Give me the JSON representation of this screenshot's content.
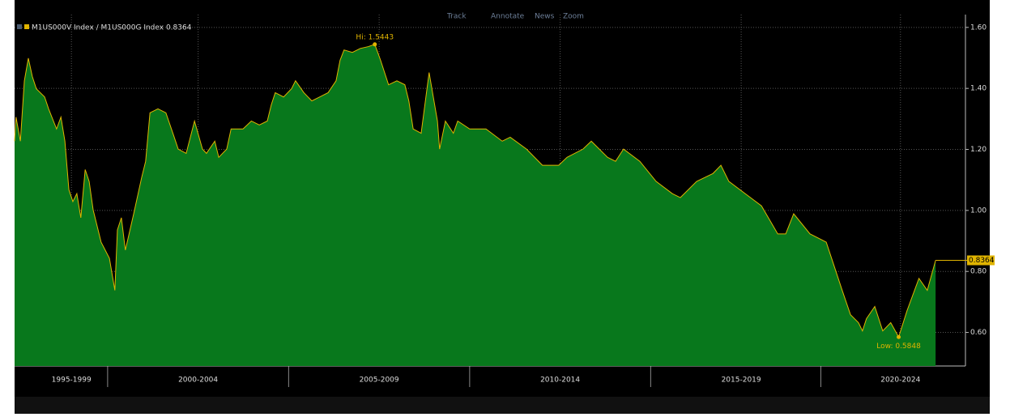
{
  "toolbar": [
    "Track",
    "Annotate",
    "News",
    "Zoom"
  ],
  "chart_data": {
    "type": "area",
    "x": [
      1997.43,
      1997.47,
      1997.59,
      1997.7,
      1997.81,
      1997.92,
      1998.03,
      1998.26,
      1998.37,
      1998.59,
      1998.71,
      1998.82,
      1998.93,
      1999.04,
      1999.15,
      1999.26,
      1999.38,
      1999.49,
      1999.6,
      1999.82,
      2000.05,
      2000.2,
      2000.27,
      2000.38,
      2000.49,
      2000.72,
      2000.94,
      2001.05,
      2001.17,
      2001.39,
      2001.61,
      2001.84,
      2001.95,
      2002.17,
      2002.4,
      2002.62,
      2002.73,
      2002.96,
      2003.07,
      2003.29,
      2003.41,
      2003.74,
      2003.97,
      2004.19,
      2004.41,
      2004.52,
      2004.63,
      2004.86,
      2005.08,
      2005.19,
      2005.42,
      2005.64,
      2005.86,
      2006.09,
      2006.31,
      2006.42,
      2006.53,
      2006.76,
      2006.98,
      2007.2,
      2007.38,
      2007.54,
      2007.76,
      2007.99,
      2008.21,
      2008.32,
      2008.44,
      2008.66,
      2008.88,
      2009.11,
      2009.17,
      2009.33,
      2009.55,
      2009.67,
      2010.0,
      2010.45,
      2010.9,
      2011.12,
      2011.57,
      2012.01,
      2012.46,
      2012.69,
      2013.13,
      2013.36,
      2013.81,
      2014.03,
      2014.25,
      2014.7,
      2015.15,
      2015.6,
      2015.82,
      2016.27,
      2016.72,
      2016.94,
      2017.16,
      2017.61,
      2018.06,
      2018.51,
      2018.73,
      2018.95,
      2019.4,
      2019.85,
      2020.07,
      2020.29,
      2020.52,
      2020.74,
      2020.85,
      2020.96,
      2021.19,
      2021.41,
      2021.63,
      2021.85,
      2022.08,
      2022.41,
      2022.64,
      2022.87
    ],
    "series": [
      {
        "name": "M1US000V Index / M1US000G Index 0.8364",
        "color": "#e0b400",
        "fill": "#08781c",
        "values": [
          1.227,
          1.306,
          1.227,
          1.425,
          1.499,
          1.439,
          1.399,
          1.372,
          1.333,
          1.267,
          1.306,
          1.227,
          1.068,
          1.029,
          1.055,
          0.976,
          1.134,
          1.095,
          1.002,
          0.896,
          0.843,
          0.738,
          0.936,
          0.976,
          0.87,
          0.989,
          1.108,
          1.161,
          1.32,
          1.333,
          1.32,
          1.24,
          1.201,
          1.187,
          1.293,
          1.201,
          1.187,
          1.227,
          1.174,
          1.201,
          1.267,
          1.267,
          1.293,
          1.28,
          1.293,
          1.346,
          1.386,
          1.372,
          1.399,
          1.425,
          1.386,
          1.359,
          1.372,
          1.386,
          1.425,
          1.492,
          1.526,
          1.518,
          1.531,
          1.537,
          1.5443,
          1.492,
          1.412,
          1.425,
          1.412,
          1.359,
          1.267,
          1.253,
          1.452,
          1.293,
          1.201,
          1.293,
          1.253,
          1.293,
          1.267,
          1.267,
          1.227,
          1.24,
          1.201,
          1.148,
          1.148,
          1.174,
          1.201,
          1.227,
          1.174,
          1.161,
          1.201,
          1.161,
          1.095,
          1.055,
          1.042,
          1.095,
          1.121,
          1.148,
          1.095,
          1.055,
          1.015,
          0.923,
          0.923,
          0.989,
          0.923,
          0.896,
          0.817,
          0.738,
          0.658,
          0.632,
          0.605,
          0.645,
          0.685,
          0.605,
          0.632,
          0.5848,
          0.671,
          0.777,
          0.738,
          0.8364
        ]
      }
    ],
    "annotations": [
      {
        "text": "Hi: 1.5443",
        "x": 2007.38,
        "y": 1.5443
      },
      {
        "text": "Low: 0.5848",
        "x": 2021.85,
        "y": 0.5848
      }
    ],
    "xlim": [
      1997.43,
      2023.65
    ],
    "xticks": [
      {
        "value": 1999,
        "label": "1995-1999"
      },
      {
        "value": 2002.5,
        "label": "2000-2004"
      },
      {
        "value": 2007.5,
        "label": "2005-2009"
      },
      {
        "value": 2012.5,
        "label": "2010-2014"
      },
      {
        "value": 2017.5,
        "label": "2015-2019"
      },
      {
        "value": 2021.9,
        "label": "2020-2024"
      }
    ],
    "ylim": [
      0.49,
      1.642
    ],
    "yticks": [
      {
        "value": 0.6,
        "label": "0.60"
      },
      {
        "value": 0.8,
        "label": "0.80"
      },
      {
        "value": 1.0,
        "label": "1.00"
      },
      {
        "value": 1.2,
        "label": "1.20"
      },
      {
        "value": 1.4,
        "label": "1.40"
      },
      {
        "value": 1.6,
        "label": "1.60"
      }
    ],
    "grid": true
  }
}
